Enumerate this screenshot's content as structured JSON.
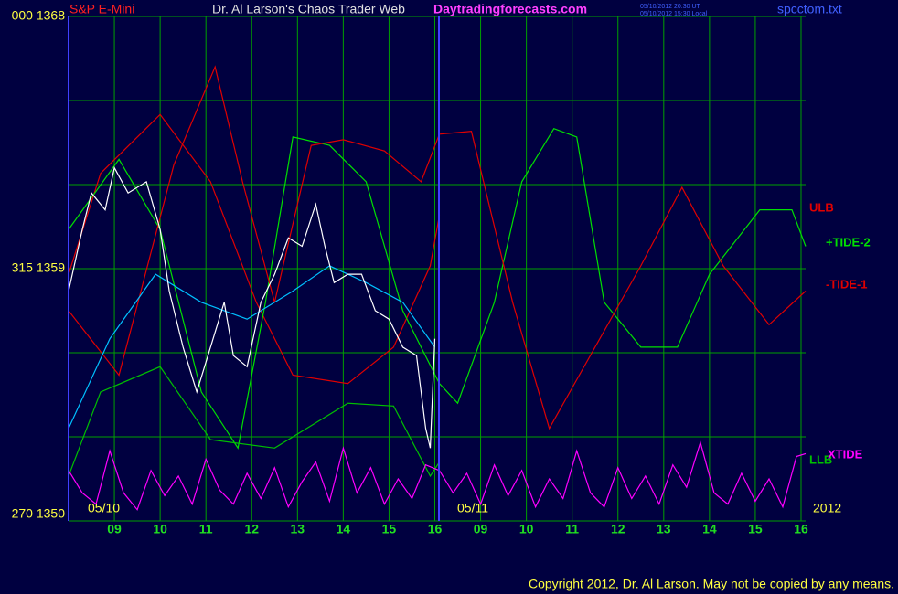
{
  "chart_data": {
    "type": "line",
    "title": "Dr. Al Larson's Chaos Trader Web",
    "subtitle": "Daytradingforecasts.com",
    "instrument": "S&P E-Mini",
    "timestamp_ut": "05/10/2012 20:30 UT",
    "timestamp_local": "05/10/2012 15:30 Local",
    "file": "spcctom.txt",
    "copyright": "Copyright 2012, Dr. Al Larson. May not be copied by any means.",
    "date_labels": [
      "05/10",
      "05/11",
      "2012"
    ],
    "ylim": [
      1350,
      1368
    ],
    "yticks": [
      {
        "value": 1350,
        "label": "270 1350"
      },
      {
        "value": 1359,
        "label": "315 1359"
      },
      {
        "value": 1368,
        "label": "000 1368"
      }
    ],
    "ygrid": [
      1350,
      1353,
      1356,
      1359,
      1362,
      1365,
      1368
    ],
    "xlim": [
      0,
      16.1
    ],
    "xticks": [
      {
        "value": 1,
        "label": "09"
      },
      {
        "value": 2,
        "label": "10"
      },
      {
        "value": 3,
        "label": "11"
      },
      {
        "value": 4,
        "label": "12"
      },
      {
        "value": 5,
        "label": "13"
      },
      {
        "value": 6,
        "label": "14"
      },
      {
        "value": 7,
        "label": "15"
      },
      {
        "value": 8,
        "label": "16"
      },
      {
        "value": 9,
        "label": "09"
      },
      {
        "value": 10,
        "label": "10"
      },
      {
        "value": 11,
        "label": "11"
      },
      {
        "value": 12,
        "label": "12"
      },
      {
        "value": 13,
        "label": "13"
      },
      {
        "value": 14,
        "label": "14"
      },
      {
        "value": 15,
        "label": "15"
      },
      {
        "value": 16,
        "label": "16"
      }
    ],
    "grid": true,
    "series": [
      {
        "name": "ULB",
        "color": "#e00000",
        "x": [
          0,
          0.7,
          2.0,
          3.1,
          4.1,
          4.9,
          6.1,
          7.1,
          7.9,
          8.1
        ],
        "values": [
          1358.8,
          1362.4,
          1364.5,
          1362.1,
          1357.8,
          1355.2,
          1354.9,
          1356.2,
          1359.1,
          1360.9
        ]
      },
      {
        "name": "+TIDE-2",
        "color": "#00e000",
        "x": [
          0,
          1.1,
          2.0,
          2.9,
          3.7,
          4.3,
          4.9,
          5.7,
          6.5,
          7.3,
          8.1,
          8.5,
          9.3,
          9.9,
          10.6,
          11.1,
          11.7,
          12.5,
          13.3,
          14.0,
          15.1,
          15.8,
          16.1
        ],
        "values": [
          1360.4,
          1362.9,
          1360.4,
          1354.6,
          1352.6,
          1357.8,
          1363.7,
          1363.4,
          1362.1,
          1357.5,
          1354.9,
          1354.2,
          1357.8,
          1362.1,
          1364.0,
          1363.7,
          1357.8,
          1356.2,
          1356.2,
          1358.8,
          1361.1,
          1361.1,
          1359.8
        ]
      },
      {
        "name": "-TIDE-1",
        "color": "#e00000",
        "x": [
          0,
          1.1,
          2.3,
          3.2,
          3.8,
          4.5,
          5.3,
          6.0,
          6.9,
          7.7,
          8.1,
          8.8,
          9.7,
          10.5,
          11.5,
          12.5,
          13.4,
          14.3,
          15.3,
          16.1
        ],
        "values": [
          1357.5,
          1355.2,
          1362.7,
          1366.2,
          1362.1,
          1357.8,
          1363.4,
          1363.6,
          1363.2,
          1362.1,
          1363.8,
          1363.9,
          1357.8,
          1353.3,
          1356.2,
          1359.1,
          1361.9,
          1359.1,
          1357.0,
          1358.2
        ]
      },
      {
        "name": "LLB",
        "color": "#00c000",
        "x": [
          0,
          0.7,
          2.0,
          3.1,
          4.5,
          6.1,
          7.1,
          7.9,
          8.1
        ],
        "values": [
          1351.6,
          1354.6,
          1355.5,
          1352.9,
          1352.6,
          1354.2,
          1354.1,
          1351.6,
          1352.1
        ]
      },
      {
        "name": "XTIDE",
        "color": "#ff00ff",
        "x": [
          0,
          0.3,
          0.6,
          0.9,
          1.2,
          1.5,
          1.8,
          2.1,
          2.4,
          2.7,
          3.0,
          3.3,
          3.6,
          3.9,
          4.2,
          4.5,
          4.8,
          5.1,
          5.4,
          5.7,
          6.0,
          6.3,
          6.6,
          6.9,
          7.2,
          7.5,
          7.8,
          8.1,
          8.4,
          8.7,
          9.0,
          9.3,
          9.6,
          9.9,
          10.2,
          10.5,
          10.8,
          11.1,
          11.4,
          11.7,
          12.0,
          12.3,
          12.6,
          12.9,
          13.2,
          13.5,
          13.8,
          14.1,
          14.4,
          14.7,
          15.0,
          15.3,
          15.6,
          15.9,
          16.1
        ],
        "values": [
          1351.8,
          1351.0,
          1350.6,
          1352.5,
          1351.0,
          1350.4,
          1351.8,
          1350.9,
          1351.6,
          1350.6,
          1352.2,
          1351.1,
          1350.6,
          1351.7,
          1350.8,
          1351.9,
          1350.5,
          1351.4,
          1352.1,
          1350.7,
          1352.6,
          1351.0,
          1351.9,
          1350.6,
          1351.5,
          1350.8,
          1352.0,
          1351.8,
          1351.0,
          1351.7,
          1350.6,
          1352.0,
          1350.9,
          1351.8,
          1350.5,
          1351.5,
          1350.8,
          1352.5,
          1351.0,
          1350.5,
          1351.9,
          1350.8,
          1351.6,
          1350.6,
          1352.0,
          1351.2,
          1352.8,
          1351.0,
          1350.6,
          1351.7,
          1350.7,
          1351.5,
          1350.5,
          1352.3,
          1352.4
        ]
      },
      {
        "color": "#00c0ff",
        "x": [
          0,
          0.9,
          1.9,
          2.9,
          3.9,
          4.9,
          5.7,
          6.5,
          7.3,
          8.0
        ],
        "values": [
          1353.3,
          1356.5,
          1358.8,
          1357.8,
          1357.2,
          1358.2,
          1359.1,
          1358.5,
          1357.8,
          1356.2
        ]
      },
      {
        "color": "#ffffff",
        "x": [
          0,
          0.3,
          0.5,
          0.8,
          1.0,
          1.3,
          1.7,
          2.0,
          2.2,
          2.5,
          2.8,
          3.1,
          3.4,
          3.6,
          3.9,
          4.2,
          4.5,
          4.8,
          5.1,
          5.4,
          5.6,
          5.8,
          6.1,
          6.4,
          6.7,
          7.0,
          7.3,
          7.6,
          7.8,
          7.9,
          8.0
        ],
        "values": [
          1358.2,
          1360.4,
          1361.7,
          1361.1,
          1362.6,
          1361.7,
          1362.1,
          1360.4,
          1358.2,
          1356.2,
          1354.6,
          1356.2,
          1357.8,
          1355.9,
          1355.5,
          1357.8,
          1358.8,
          1360.1,
          1359.8,
          1361.3,
          1359.8,
          1358.5,
          1358.8,
          1358.8,
          1357.5,
          1357.2,
          1356.2,
          1355.9,
          1353.3,
          1352.6,
          1356.5
        ]
      }
    ]
  }
}
